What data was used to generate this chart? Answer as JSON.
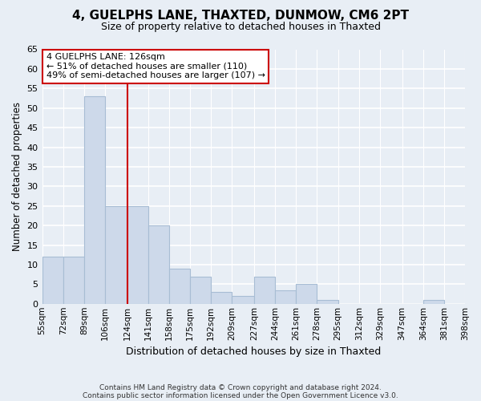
{
  "title": "4, GUELPHS LANE, THAXTED, DUNMOW, CM6 2PT",
  "subtitle": "Size of property relative to detached houses in Thaxted",
  "xlabel": "Distribution of detached houses by size in Thaxted",
  "ylabel": "Number of detached properties",
  "footnote1": "Contains HM Land Registry data © Crown copyright and database right 2024.",
  "footnote2": "Contains public sector information licensed under the Open Government Licence v3.0.",
  "bin_edges": [
    55,
    72,
    89,
    106,
    124,
    141,
    158,
    175,
    192,
    209,
    227,
    244,
    261,
    278,
    295,
    312,
    329,
    347,
    364,
    381,
    398
  ],
  "bin_labels": [
    "55sqm",
    "72sqm",
    "89sqm",
    "106sqm",
    "124sqm",
    "141sqm",
    "158sqm",
    "175sqm",
    "192sqm",
    "209sqm",
    "227sqm",
    "244sqm",
    "261sqm",
    "278sqm",
    "295sqm",
    "312sqm",
    "329sqm",
    "347sqm",
    "364sqm",
    "381sqm",
    "398sqm"
  ],
  "counts": [
    12,
    12,
    53,
    25,
    25,
    20,
    9,
    7,
    3,
    2,
    7,
    3.5,
    5,
    1,
    0,
    0,
    0,
    0,
    1,
    0
  ],
  "bar_color": "#cdd9ea",
  "bar_edge_color": "#a8bdd4",
  "property_line_x": 124,
  "property_line_color": "#cc0000",
  "annotation_title": "4 GUELPHS LANE: 126sqm",
  "annotation_line1": "← 51% of detached houses are smaller (110)",
  "annotation_line2": "49% of semi-detached houses are larger (107) →",
  "ylim": [
    0,
    65
  ],
  "yticks": [
    0,
    5,
    10,
    15,
    20,
    25,
    30,
    35,
    40,
    45,
    50,
    55,
    60,
    65
  ],
  "bg_color": "#e8eef5",
  "grid_color": "#ffffff",
  "annotation_bg": "#ffffff",
  "annotation_border": "#cc0000",
  "title_fontsize": 11,
  "subtitle_fontsize": 9
}
